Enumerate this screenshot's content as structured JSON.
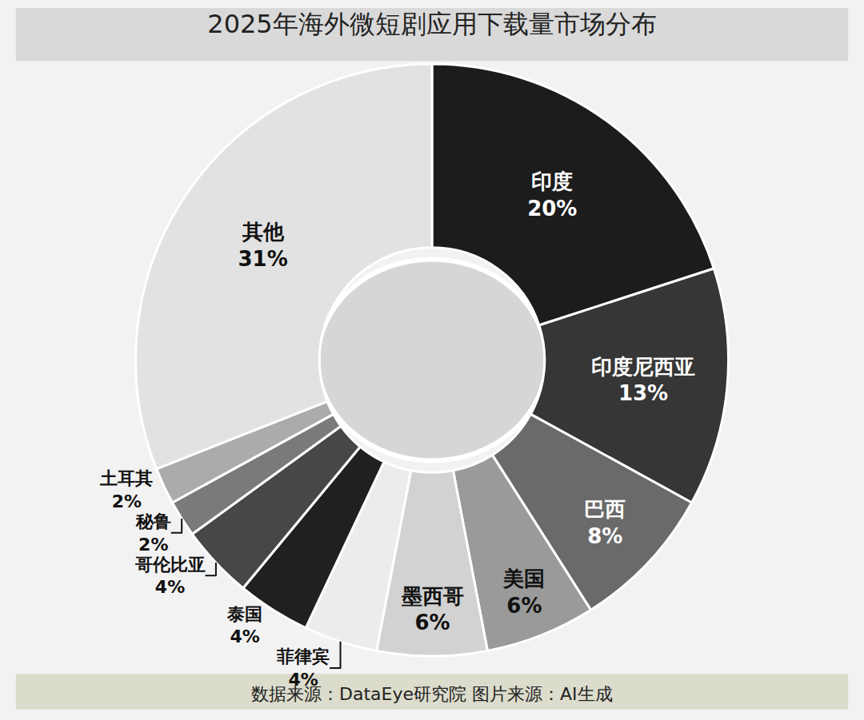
{
  "chart_data": {
    "type": "pie",
    "title": "2025年海外微短剧应用下载量市场分布",
    "categories": [
      "印度",
      "印度尼西亚",
      "巴西",
      "美国",
      "墨西哥",
      "菲律宾",
      "泰国",
      "哥伦比亚",
      "秘鲁",
      "土耳其",
      "其他"
    ],
    "values": [
      20,
      13,
      8,
      6,
      6,
      4,
      4,
      4,
      2,
      2,
      31
    ],
    "value_labels": [
      "20%",
      "13%",
      "8%",
      "6%",
      "6%",
      "4%",
      "4%",
      "4%",
      "2%",
      "2%",
      "31%"
    ],
    "colors": [
      "#1c1c1c",
      "#363636",
      "#6a6a6a",
      "#9a9a9a",
      "#d2d2d2",
      "#ececec",
      "#202020",
      "#474747",
      "#7a7a7a",
      "#ababab",
      "#e2e2e2"
    ],
    "data_labels": true,
    "annotations": [
      "数据来源：DataEye研究院 图片来源：AI生成"
    ]
  }
}
